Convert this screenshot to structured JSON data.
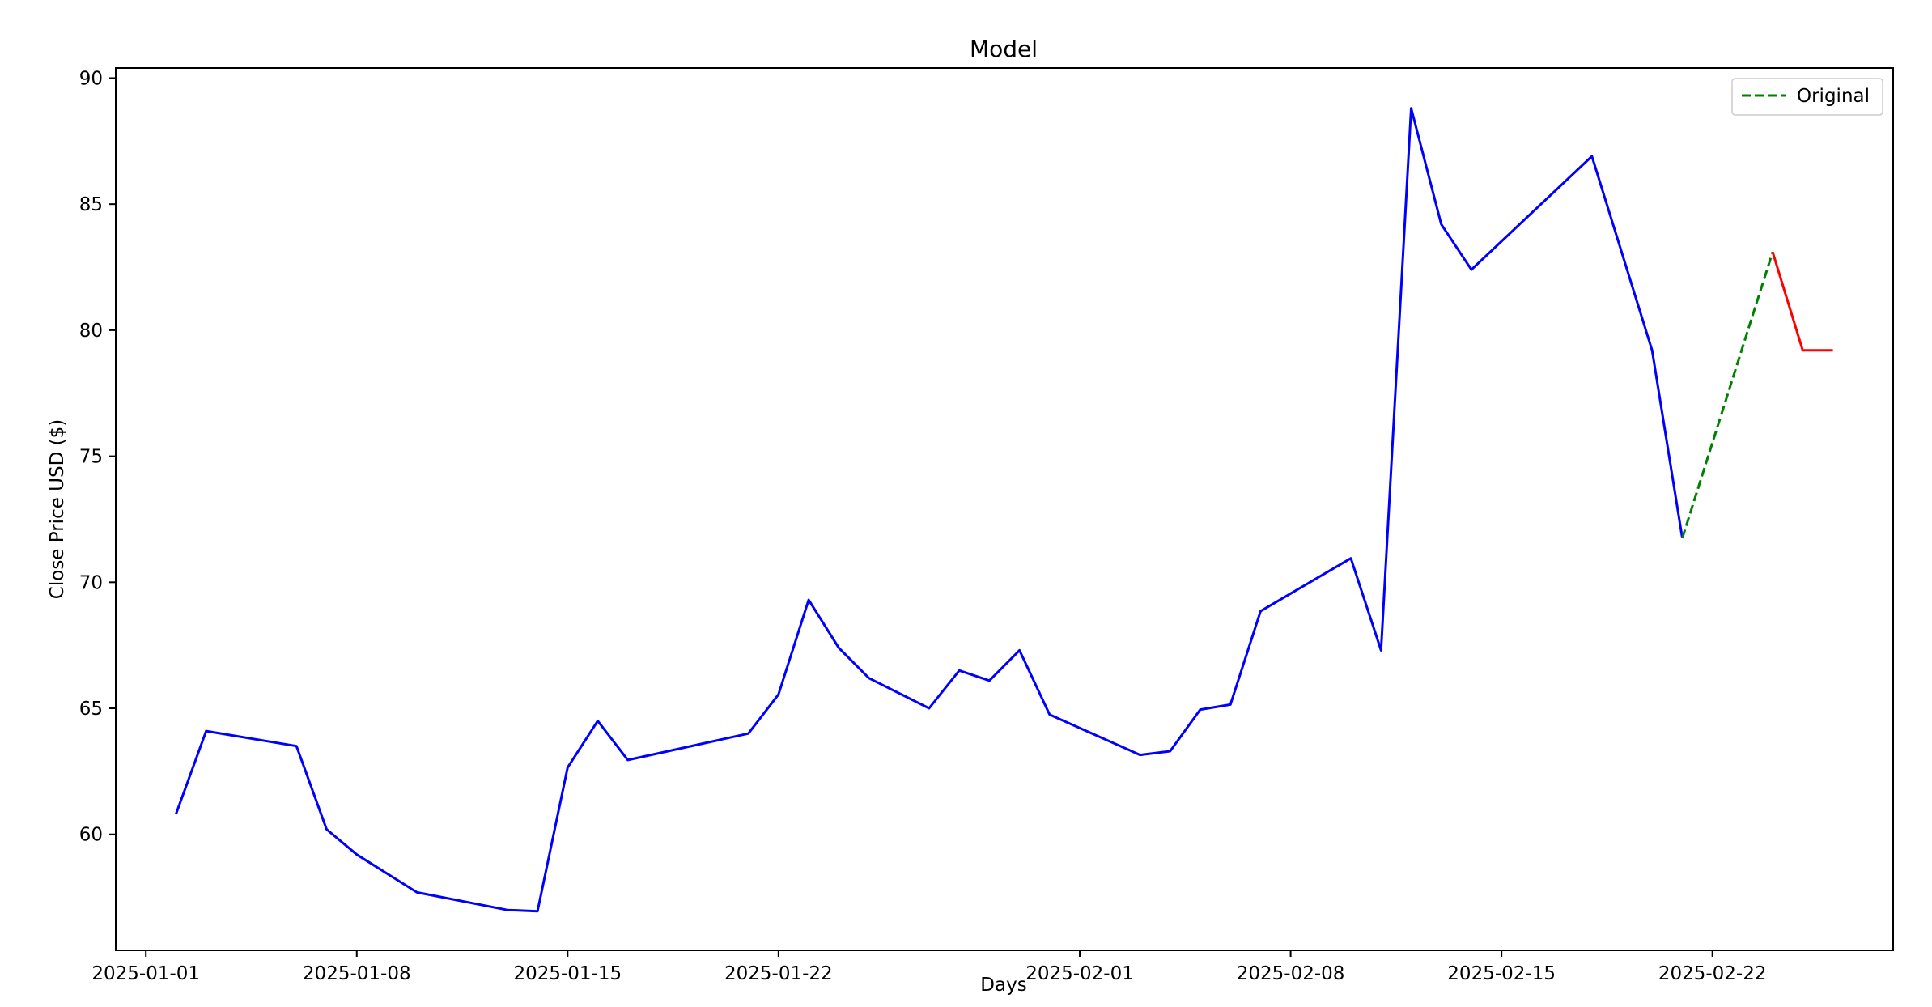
{
  "chart_data": {
    "type": "line",
    "title": "Model",
    "xlabel": "Days",
    "ylabel": "Close Price USD ($)",
    "x_ticks": [
      "2025-01-01",
      "2025-01-08",
      "2025-01-15",
      "2025-01-22",
      "2025-02-01",
      "2025-02-08",
      "2025-02-15",
      "2025-02-22"
    ],
    "y_ticks": [
      60,
      65,
      70,
      75,
      80,
      85,
      90
    ],
    "xlim": [
      "2025-12-31",
      "2025-02-28"
    ],
    "ylim": [
      55.4,
      90.4
    ],
    "grid": false,
    "legend": {
      "position": "top-right",
      "entries": [
        "Original"
      ]
    },
    "series": [
      {
        "color": "#0000ff",
        "style": "solid",
        "points": [
          [
            "2025-01-02",
            60.8
          ],
          [
            "2025-01-03",
            64.1
          ],
          [
            "2025-01-06",
            63.5
          ],
          [
            "2025-01-07",
            60.2
          ],
          [
            "2025-01-08",
            59.2
          ],
          [
            "2025-01-10",
            57.7
          ],
          [
            "2025-01-13",
            57.0
          ],
          [
            "2025-01-14",
            56.95
          ],
          [
            "2025-01-15",
            62.65
          ],
          [
            "2025-01-16",
            64.5
          ],
          [
            "2025-01-17",
            62.95
          ],
          [
            "2025-01-21",
            64.0
          ],
          [
            "2025-01-22",
            65.55
          ],
          [
            "2025-01-23",
            69.3
          ],
          [
            "2025-01-24",
            67.4
          ],
          [
            "2025-01-25",
            66.2
          ],
          [
            "2025-01-27",
            65.0
          ],
          [
            "2025-01-28",
            66.5
          ],
          [
            "2025-01-29",
            66.1
          ],
          [
            "2025-01-30",
            67.3
          ],
          [
            "2025-01-31",
            64.75
          ],
          [
            "2025-02-03",
            63.15
          ],
          [
            "2025-02-04",
            63.3
          ],
          [
            "2025-02-05",
            64.95
          ],
          [
            "2025-02-06",
            65.15
          ],
          [
            "2025-02-07",
            68.85
          ],
          [
            "2025-02-10",
            70.95
          ],
          [
            "2025-02-11",
            67.3
          ],
          [
            "2025-02-12",
            88.8
          ],
          [
            "2025-02-13",
            84.2
          ],
          [
            "2025-02-14",
            82.4
          ],
          [
            "2025-02-18",
            86.9
          ],
          [
            "2025-02-20",
            79.2
          ],
          [
            "2025-02-21",
            71.75
          ]
        ]
      },
      {
        "name": "Original",
        "color": "#008000",
        "style": "dashed",
        "points": [
          [
            "2025-02-21",
            71.75
          ],
          [
            "2025-02-24",
            83.1
          ]
        ]
      },
      {
        "color": "#ff0000",
        "style": "solid",
        "points": [
          [
            "2025-02-24",
            83.1
          ],
          [
            "2025-02-25",
            79.2
          ],
          [
            "2025-02-26",
            79.2
          ]
        ]
      }
    ]
  }
}
